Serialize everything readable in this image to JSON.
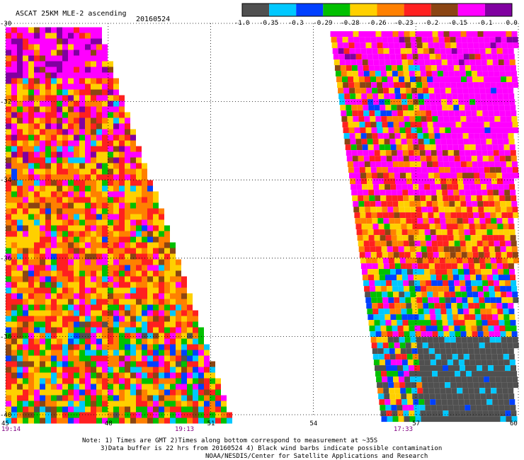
{
  "chart_data": {
    "type": "heatmap",
    "title": "ASCAT 25KM MLE-2 ascending",
    "date": "20160524",
    "x_ticks": [
      "45",
      "48",
      "51",
      "54",
      "57",
      "60"
    ],
    "y_ticks": [
      "-30",
      "-32",
      "-34",
      "-36",
      "-38",
      "-40"
    ],
    "xlim": [
      45,
      60
    ],
    "ylim": [
      -40,
      -30
    ],
    "grid": true,
    "pass_times": [
      {
        "label": "19:14",
        "lon": 45
      },
      {
        "label": "19:13",
        "lon": 50.2
      },
      {
        "label": "17:33",
        "lon": 56.6
      }
    ],
    "colorbar": {
      "tick_labels": [
        "-1.0",
        "-0.35",
        "-0.3",
        "-0.29",
        "-0.28",
        "-0.26",
        "-0.23",
        "-0.2",
        "-0.15",
        "-0.1",
        "0.0"
      ],
      "colors": [
        "#505050",
        "#00c8ff",
        "#0040ff",
        "#00c000",
        "#ffd000",
        "#ff8000",
        "#ff2020",
        "#8b4513",
        "#ff00ff",
        "#8000a0"
      ]
    },
    "swaths": [
      {
        "name": "left",
        "lon_west": 45.0,
        "lon_east_north": 47.8,
        "lon_east_south": 51.7,
        "lat_north": -30.1,
        "lat_south": -40.1
      },
      {
        "name": "right",
        "lon_west_north": 54.5,
        "lon_west_south": 56.0,
        "lon_east": 60.0,
        "lat_north": -30.2,
        "lat_south": -40.1
      }
    ]
  },
  "notes": {
    "line1": "Note: 1) Times are GMT 2)Times along bottom correspond to measurement at ~35S",
    "line2": "3)Data buffer is 22 hrs from 20160524 4) Black wind barbs indicate possible contamination",
    "line3": "NOAA/NESDIS/Center for Satellite Applications and Research"
  }
}
